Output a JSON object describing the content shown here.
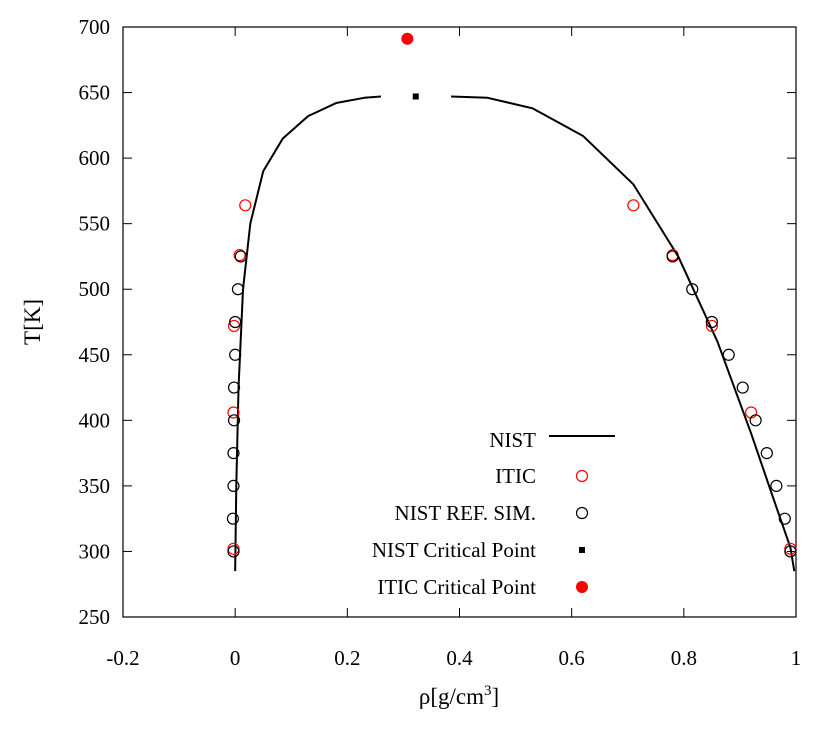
{
  "chart_data": {
    "type": "scatter",
    "xlabel_main": "ρ[g/cm",
    "xlabel_sup": "3",
    "xlabel_end": "]",
    "ylabel": "T[K]",
    "xlim": [
      -0.2,
      1.0
    ],
    "ylim": [
      250,
      700
    ],
    "x_ticks": [
      "-0.2",
      "0",
      "0.2",
      "0.4",
      "0.6",
      "0.8",
      "1"
    ],
    "y_ticks": [
      "250",
      "300",
      "350",
      "400",
      "450",
      "500",
      "550",
      "600",
      "650",
      "700"
    ],
    "grid": false,
    "legend_position": "bottom-right",
    "series": [
      {
        "name": "NIST",
        "style": "line",
        "color": "#000000",
        "branches": [
          {
            "x": [
              0.0,
              0.002,
              0.006,
              0.014,
              0.027,
              0.05,
              0.085,
              0.13,
              0.18,
              0.23,
              0.26
            ],
            "y": [
              285,
              350,
              425,
              500,
              550,
              590,
              615,
              632,
              642,
              646,
              647
            ]
          },
          {
            "x": [
              0.385,
              0.45,
              0.53,
              0.62,
              0.71,
              0.79,
              0.86,
              0.92,
              0.96,
              0.99,
              0.997
            ],
            "y": [
              647,
              646,
              638,
              617,
              580,
              525,
              460,
              390,
              340,
              303,
              285
            ]
          }
        ]
      },
      {
        "name": "ITIC",
        "style": "open-circle",
        "color": "#ff0000",
        "points": [
          {
            "x": -0.003,
            "y": 302
          },
          {
            "x": -0.003,
            "y": 406
          },
          {
            "x": -0.002,
            "y": 472
          },
          {
            "x": 0.008,
            "y": 526
          },
          {
            "x": 0.018,
            "y": 564
          },
          {
            "x": 0.71,
            "y": 564
          },
          {
            "x": 0.78,
            "y": 526
          },
          {
            "x": 0.85,
            "y": 472
          },
          {
            "x": 0.92,
            "y": 406
          },
          {
            "x": 0.99,
            "y": 302
          }
        ]
      },
      {
        "name": "NIST REF. SIM.",
        "style": "open-circle",
        "color": "#000000",
        "points": [
          {
            "x": -0.003,
            "y": 300
          },
          {
            "x": -0.004,
            "y": 325
          },
          {
            "x": -0.003,
            "y": 350
          },
          {
            "x": -0.003,
            "y": 375
          },
          {
            "x": -0.002,
            "y": 400
          },
          {
            "x": -0.002,
            "y": 425
          },
          {
            "x": 0.0,
            "y": 450
          },
          {
            "x": 0.0,
            "y": 475
          },
          {
            "x": 0.005,
            "y": 500
          },
          {
            "x": 0.01,
            "y": 525
          },
          {
            "x": 0.99,
            "y": 300
          },
          {
            "x": 0.98,
            "y": 325
          },
          {
            "x": 0.965,
            "y": 350
          },
          {
            "x": 0.948,
            "y": 375
          },
          {
            "x": 0.928,
            "y": 400
          },
          {
            "x": 0.905,
            "y": 425
          },
          {
            "x": 0.88,
            "y": 450
          },
          {
            "x": 0.85,
            "y": 475
          },
          {
            "x": 0.815,
            "y": 500
          },
          {
            "x": 0.78,
            "y": 525
          }
        ]
      },
      {
        "name": "NIST Critical Point",
        "style": "filled-square",
        "color": "#000000",
        "points": [
          {
            "x": 0.322,
            "y": 647
          }
        ]
      },
      {
        "name": "ITIC Critical Point",
        "style": "filled-circle",
        "color": "#ff0000",
        "points": [
          {
            "x": 0.307,
            "y": 691
          }
        ]
      }
    ]
  }
}
